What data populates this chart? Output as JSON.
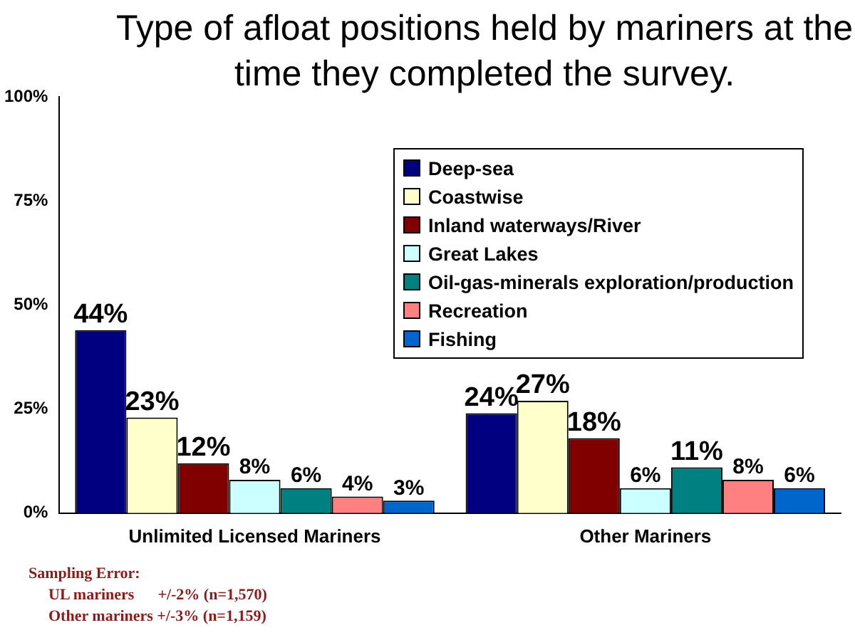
{
  "chart_data": {
    "type": "bar",
    "title": "Type of afloat positions held by mariners at the time they completed the survey.",
    "categories": [
      "Unlimited Licensed Mariners",
      "Other Mariners"
    ],
    "series": [
      {
        "name": "Deep-sea",
        "color": "#000080",
        "values": [
          44,
          24
        ],
        "value_labels": [
          "44%",
          "24%"
        ]
      },
      {
        "name": "Coastwise",
        "color": "#ffffcc",
        "values": [
          23,
          27
        ],
        "value_labels": [
          "23%",
          "27%"
        ]
      },
      {
        "name": "Inland waterways/River",
        "color": "#800000",
        "values": [
          12,
          18
        ],
        "value_labels": [
          "12%",
          "18%"
        ]
      },
      {
        "name": "Great Lakes",
        "color": "#ccffff",
        "values": [
          8,
          6
        ],
        "value_labels": [
          "8%",
          "6%"
        ]
      },
      {
        "name": "Oil-gas-minerals exploration/production",
        "color": "#008080",
        "values": [
          6,
          11
        ],
        "value_labels": [
          "6%",
          "11%"
        ]
      },
      {
        "name": "Recreation",
        "color": "#ff8080",
        "values": [
          4,
          8
        ],
        "value_labels": [
          "4%",
          "8%"
        ]
      },
      {
        "name": "Fishing",
        "color": "#0066cc",
        "values": [
          3,
          6
        ],
        "value_labels": [
          "3%",
          "6%"
        ]
      }
    ],
    "ylim": [
      0,
      100
    ],
    "yticks": [
      {
        "value": 0,
        "label": "0%"
      },
      {
        "value": 25,
        "label": "25%"
      },
      {
        "value": 50,
        "label": "50%"
      },
      {
        "value": 75,
        "label": "75%"
      },
      {
        "value": 100,
        "label": "100%"
      }
    ],
    "grid": false,
    "legend": "top right",
    "annotations": [
      "Sampling Error:",
      "UL mariners      +/-2% (n=1,570)",
      "Other mariners +/-3% (n=1,159)"
    ]
  }
}
